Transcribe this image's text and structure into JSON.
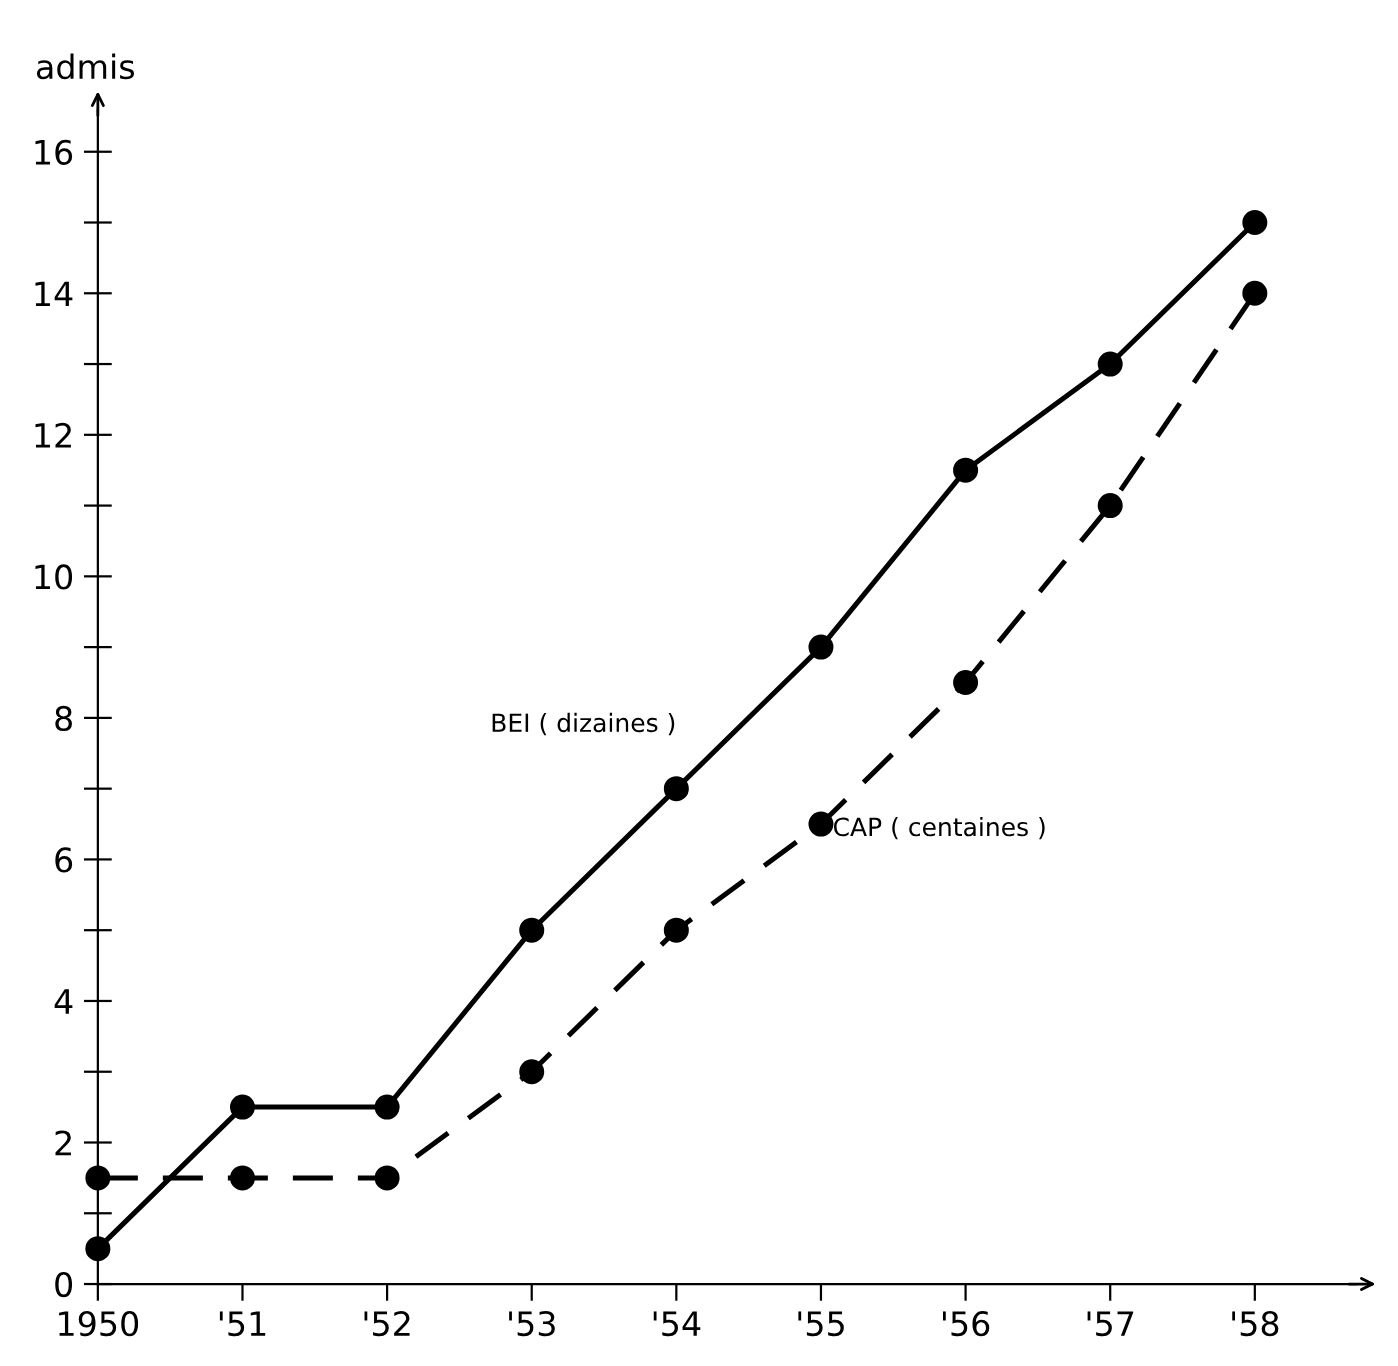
{
  "chart_data": {
    "type": "line",
    "ylabel": "admis",
    "x": [
      1950,
      1951,
      1952,
      1953,
      1954,
      1955,
      1956,
      1957,
      1958
    ],
    "series": [
      {
        "name": "BEI ( dizaines )",
        "color": "#000000",
        "line_style": "solid",
        "values": [
          0.5,
          2.5,
          2.5,
          5,
          7,
          9,
          11.5,
          13,
          15
        ]
      },
      {
        "name": "CAP ( centaines )",
        "color": "#000000",
        "line_style": "dashed",
        "values": [
          1.5,
          1.5,
          1.5,
          3,
          5,
          6.5,
          8.5,
          11,
          14
        ]
      }
    ],
    "marker": "circle",
    "grid": false,
    "legend": false,
    "xlim": [
      1950,
      1958.7
    ],
    "xticks": [
      {
        "value": 1950,
        "label": "1950"
      },
      {
        "value": 1951,
        "label": "'51"
      },
      {
        "value": 1952,
        "label": "'52"
      },
      {
        "value": 1953,
        "label": "'53"
      },
      {
        "value": 1954,
        "label": "'54"
      },
      {
        "value": 1955,
        "label": "'55"
      },
      {
        "value": 1956,
        "label": "'56"
      },
      {
        "value": 1957,
        "label": "'57"
      },
      {
        "value": 1958,
        "label": "'58"
      }
    ],
    "ylim": [
      0,
      16.6
    ],
    "yticks": [
      0,
      {
        "value": 1,
        "label": null
      },
      2,
      {
        "value": 3,
        "label": null
      },
      4,
      {
        "value": 5,
        "label": null
      },
      6,
      {
        "value": 7,
        "label": null
      },
      8,
      {
        "value": 9,
        "label": null
      },
      10,
      {
        "value": 11,
        "label": null
      },
      12,
      {
        "value": 13,
        "label": null
      },
      14,
      {
        "value": 15,
        "label": null
      },
      16
    ]
  }
}
